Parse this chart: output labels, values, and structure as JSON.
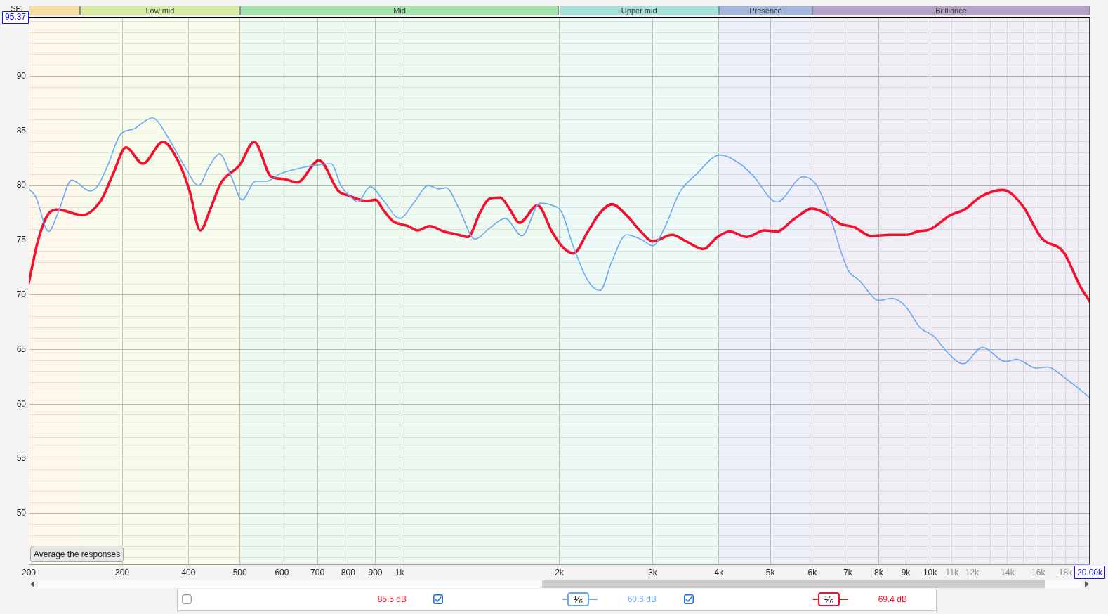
{
  "chart_data": {
    "type": "line",
    "ylabel": "SPL",
    "log": "x",
    "grid": true,
    "marker": "none",
    "line_style": "solid",
    "xlim": [
      200,
      20000
    ],
    "xticks": [
      200,
      300,
      400,
      500,
      600,
      700,
      800,
      900,
      {
        "value": 1000,
        "label": "1k"
      },
      {
        "value": 2000,
        "label": "2k"
      },
      {
        "value": 3000,
        "label": "3k"
      },
      {
        "value": 4000,
        "label": "4k"
      },
      {
        "value": 5000,
        "label": "5k"
      },
      {
        "value": 6000,
        "label": "6k"
      },
      {
        "value": 7000,
        "label": "7k"
      },
      {
        "value": 8000,
        "label": "8k"
      },
      {
        "value": 9000,
        "label": "9k"
      },
      {
        "value": 10000,
        "label": "10k"
      },
      {
        "value": 11000,
        "label": "11k"
      },
      {
        "value": 12000,
        "label": "12k"
      },
      {
        "value": 13000,
        "label": null
      },
      {
        "value": 14000,
        "label": "14k"
      },
      {
        "value": 15000,
        "label": null
      },
      {
        "value": 16000,
        "label": "16k"
      },
      {
        "value": 17000,
        "label": null
      },
      {
        "value": 18000,
        "label": "18k"
      },
      {
        "value": 19000,
        "label": null
      },
      {
        "value": 20000,
        "label": "20.00k"
      }
    ],
    "ylim": [
      45.37,
      95.37
    ],
    "yticks": [
      {
        "value": 46,
        "label": null
      },
      {
        "value": 47,
        "label": null
      },
      {
        "value": 48,
        "label": null
      },
      {
        "value": 49,
        "label": null
      },
      50,
      {
        "value": 51,
        "label": null
      },
      {
        "value": 52,
        "label": null
      },
      {
        "value": 53,
        "label": null
      },
      {
        "value": 54,
        "label": null
      },
      55,
      {
        "value": 56,
        "label": null
      },
      {
        "value": 57,
        "label": null
      },
      {
        "value": 58,
        "label": null
      },
      {
        "value": 59,
        "label": null
      },
      60,
      {
        "value": 61,
        "label": null
      },
      {
        "value": 62,
        "label": null
      },
      {
        "value": 63,
        "label": null
      },
      {
        "value": 64,
        "label": null
      },
      65,
      {
        "value": 66,
        "label": null
      },
      {
        "value": 67,
        "label": null
      },
      {
        "value": 68,
        "label": null
      },
      {
        "value": 69,
        "label": null
      },
      70,
      {
        "value": 71,
        "label": null
      },
      {
        "value": 72,
        "label": null
      },
      {
        "value": 73,
        "label": null
      },
      {
        "value": 74,
        "label": null
      },
      75,
      {
        "value": 76,
        "label": null
      },
      {
        "value": 77,
        "label": null
      },
      {
        "value": 78,
        "label": null
      },
      {
        "value": 79,
        "label": null
      },
      80,
      {
        "value": 81,
        "label": null
      },
      {
        "value": 82,
        "label": null
      },
      {
        "value": 83,
        "label": null
      },
      {
        "value": 84,
        "label": null
      },
      85,
      {
        "value": 86,
        "label": null
      },
      {
        "value": 87,
        "label": null
      },
      {
        "value": 88,
        "label": null
      },
      {
        "value": 89,
        "label": null
      },
      90,
      {
        "value": 91,
        "label": null
      },
      {
        "value": 92,
        "label": null
      },
      {
        "value": 93,
        "label": null
      },
      {
        "value": 94,
        "label": null
      },
      {
        "value": 95,
        "label": null
      },
      95.37
    ],
    "bands": [
      {
        "axis": "x",
        "from": 200,
        "to": 250,
        "color": "#f9dca2"
      },
      {
        "axis": "x",
        "from": 250,
        "to": 500,
        "label": "Low mid",
        "color": "#d5e9a1"
      },
      {
        "axis": "x",
        "from": 500,
        "to": 2000,
        "label": "Mid",
        "color": "#a3e2aa"
      },
      {
        "axis": "x",
        "from": 2000,
        "to": 4000,
        "label": "Upper mid",
        "color": "#a4dfd6"
      },
      {
        "axis": "x",
        "from": 4000,
        "to": 6000,
        "label": "Presence",
        "color": "#a3b6de"
      },
      {
        "axis": "x",
        "from": 6000,
        "to": 20000,
        "label": "Brilliance",
        "color": "#b3a3c9"
      }
    ],
    "series": [
      {
        "color": "#6ea8f5",
        "x": [
          200,
          206,
          218,
          227,
          241,
          261,
          270,
          282,
          297,
          316,
          342,
          366,
          394,
          418,
          437,
          458,
          480,
          505,
          535,
          561,
          597,
          663,
          705,
          743,
          775,
          808,
          834,
          880,
          934,
          1000,
          1070,
          1132,
          1187,
          1225,
          1291,
          1388,
          1478,
          1582,
          1701,
          1839,
          1937,
          2019,
          2127,
          2265,
          2387,
          2514,
          2676,
          2849,
          3001,
          3163,
          3365,
          3619,
          4019,
          4379,
          4620,
          5146,
          5764,
          6118,
          6536,
          6778,
          7022,
          7365,
          8007,
          8453,
          8975,
          9580,
          10170,
          10800,
          11540,
          12550,
          13887,
          14563,
          15840,
          16614,
          18060,
          20000
        ],
        "values": [
          79.7,
          79.0,
          75.8,
          77.5,
          80.5,
          79.5,
          80.0,
          81.9,
          84.6,
          85.2,
          86.2,
          84.4,
          81.7,
          80.0,
          81.7,
          82.9,
          81.0,
          78.7,
          80.4,
          80.4,
          81.1,
          81.7,
          81.9,
          82.0,
          80.0,
          79.0,
          78.5,
          79.9,
          78.6,
          77.0,
          78.6,
          80.0,
          79.7,
          79.8,
          78.0,
          75.1,
          76.1,
          77.0,
          75.4,
          78.4,
          78.2,
          77.6,
          74.4,
          71.3,
          70.4,
          73.1,
          75.5,
          75.1,
          74.5,
          76.2,
          79.3,
          81.0,
          82.8,
          82.0,
          81.0,
          78.5,
          80.8,
          80.0,
          76.6,
          74.1,
          72.2,
          71.3,
          69.5,
          69.7,
          69.0,
          67.0,
          66.2,
          64.7,
          63.7,
          65.2,
          63.9,
          64.1,
          63.3,
          63.4,
          62.3,
          60.6
        ]
      },
      {
        "color": "#f5102e",
        "x": [
          200,
          208,
          217,
          227,
          252,
          274,
          288,
          305,
          328,
          358,
          381,
          402,
          421,
          441,
          460,
          500,
          532,
          573,
          604,
          642,
          705,
          767,
          800,
          865,
          901,
          934,
          974,
          1000,
          1037,
          1081,
          1139,
          1212,
          1291,
          1346,
          1417,
          1478,
          1548,
          1606,
          1683,
          1820,
          1937,
          2019,
          2127,
          2265,
          2387,
          2514,
          2676,
          2849,
          3001,
          3263,
          3472,
          3734,
          3976,
          4189,
          4511,
          4875,
          5146,
          5527,
          6000,
          6382,
          6778,
          7192,
          7729,
          8403,
          9030,
          9472,
          10000,
          10935,
          11606,
          12471,
          13720,
          14920,
          16226,
          17860,
          19180,
          20000
        ],
        "values": [
          71.1,
          74.9,
          77.3,
          77.8,
          77.3,
          78.7,
          81.0,
          83.5,
          82.0,
          84.0,
          82.4,
          79.5,
          75.9,
          78.0,
          80.2,
          81.9,
          84.0,
          80.8,
          80.6,
          80.3,
          82.3,
          79.5,
          79.1,
          78.6,
          78.7,
          77.7,
          76.7,
          76.5,
          76.3,
          75.9,
          76.3,
          75.8,
          75.5,
          75.3,
          77.5,
          78.8,
          78.9,
          78.0,
          76.6,
          78.2,
          75.8,
          74.5,
          73.8,
          75.8,
          77.5,
          78.3,
          77.3,
          75.8,
          74.9,
          75.5,
          74.9,
          74.2,
          75.3,
          75.8,
          75.3,
          75.9,
          75.8,
          76.9,
          77.9,
          77.4,
          76.5,
          76.2,
          75.4,
          75.5,
          75.5,
          75.8,
          76.0,
          77.3,
          77.8,
          79.0,
          79.6,
          78.2,
          75.2,
          73.9,
          70.8,
          69.4
        ]
      }
    ],
    "annotations": [
      "Average the responses",
      "85.5 dB",
      "¹⁄₆",
      "60.6 dB",
      "¹⁄₆",
      "69.4 dB"
    ]
  }
}
